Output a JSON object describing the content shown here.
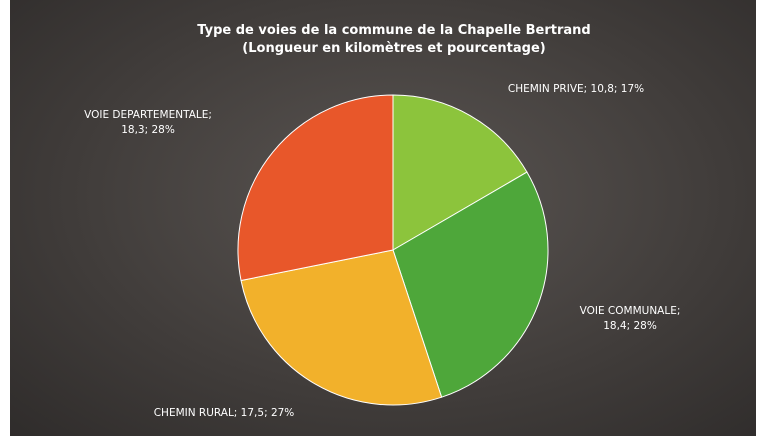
{
  "chart_data": {
    "type": "pie",
    "title": "Type de voies de la commune de la Chapelle Bertrand",
    "subtitle": "(Longueur en kilomètres et pourcentage)",
    "start_angle_deg": 0,
    "direction": "clockwise",
    "slices": [
      {
        "name": "CHEMIN PRIVE",
        "value": 10.8,
        "percent": 17,
        "color": "#8cc43c",
        "label_lines": [
          "CHEMIN PRIVE; 10,8; 17%"
        ]
      },
      {
        "name": "VOIE COMMUNALE",
        "value": 18.4,
        "percent": 28,
        "color": "#4ea73a",
        "label_lines": [
          "VOIE COMMUNALE;",
          "18,4; 28%"
        ]
      },
      {
        "name": "CHEMIN RURAL",
        "value": 17.5,
        "percent": 27,
        "color": "#f2b12b",
        "label_lines": [
          "CHEMIN RURAL; 17,5; 27%"
        ]
      },
      {
        "name": "VOIE DEPARTEMENTALE",
        "value": 18.3,
        "percent": 28,
        "color": "#e8572a",
        "label_lines": [
          "VOIE DEPARTEMENTALE;",
          "18,3; 28%"
        ]
      }
    ]
  }
}
